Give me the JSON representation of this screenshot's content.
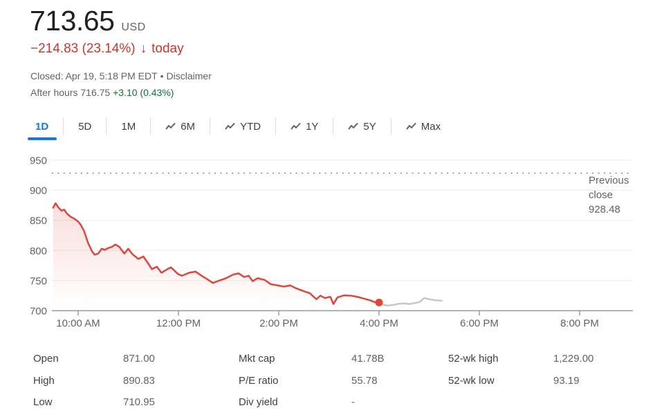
{
  "header": {
    "price": "713.65",
    "currency": "USD",
    "change": "−214.83 (23.14%)",
    "change_arrow": "↓",
    "change_suffix": "today",
    "closed_text": "Closed: Apr 19, 5:18 PM EDT",
    "separator": "•",
    "disclaimer": "Disclaimer",
    "after_hours_label": "After hours",
    "after_hours_price": "716.75",
    "after_hours_change": "+3.10 (0.43%)"
  },
  "tabs": [
    {
      "label": "1D",
      "active": true,
      "has_icon": false
    },
    {
      "label": "5D",
      "active": false,
      "has_icon": false
    },
    {
      "label": "1M",
      "active": false,
      "has_icon": false
    },
    {
      "label": "6M",
      "active": false,
      "has_icon": true
    },
    {
      "label": "YTD",
      "active": false,
      "has_icon": true
    },
    {
      "label": "1Y",
      "active": false,
      "has_icon": true
    },
    {
      "label": "5Y",
      "active": false,
      "has_icon": true
    },
    {
      "label": "Max",
      "active": false,
      "has_icon": true
    }
  ],
  "chart_data": {
    "type": "line",
    "title": "1-day intraday price",
    "xlabel": "",
    "ylabel": "",
    "grid": true,
    "y_axis": {
      "ticks": [
        700,
        750,
        800,
        850,
        900,
        950
      ],
      "range": [
        700,
        950
      ]
    },
    "x_axis": {
      "tick_hours": [
        10,
        12,
        14,
        16,
        18,
        20
      ],
      "tick_labels": [
        "10:00 AM",
        "12:00 PM",
        "2:00 PM",
        "4:00 PM",
        "6:00 PM",
        "8:00 PM"
      ],
      "range_hours": [
        9.47,
        21.06
      ]
    },
    "previous_close": {
      "value": 928.48,
      "label_lines": [
        "Previous",
        "close",
        "928.48"
      ]
    },
    "series": [
      {
        "name": "market-hours",
        "color": "#e0453a",
        "fill": true,
        "end_dot": true,
        "points": [
          [
            9.5,
            871
          ],
          [
            9.55,
            878.5
          ],
          [
            9.6,
            872
          ],
          [
            9.67,
            866
          ],
          [
            9.72,
            868
          ],
          [
            9.78,
            861
          ],
          [
            9.85,
            856
          ],
          [
            9.92,
            853
          ],
          [
            10.0,
            848
          ],
          [
            10.05,
            843
          ],
          [
            10.12,
            832
          ],
          [
            10.2,
            812
          ],
          [
            10.28,
            798
          ],
          [
            10.33,
            793
          ],
          [
            10.4,
            795
          ],
          [
            10.47,
            803
          ],
          [
            10.53,
            801
          ],
          [
            10.6,
            804
          ],
          [
            10.67,
            806
          ],
          [
            10.74,
            810
          ],
          [
            10.82,
            806
          ],
          [
            10.92,
            795
          ],
          [
            11.0,
            803
          ],
          [
            11.08,
            794
          ],
          [
            11.2,
            786
          ],
          [
            11.3,
            790
          ],
          [
            11.4,
            778
          ],
          [
            11.47,
            769
          ],
          [
            11.57,
            773
          ],
          [
            11.66,
            763
          ],
          [
            11.78,
            769
          ],
          [
            11.85,
            772
          ],
          [
            11.99,
            761
          ],
          [
            12.07,
            758
          ],
          [
            12.21,
            763
          ],
          [
            12.34,
            765
          ],
          [
            12.48,
            757
          ],
          [
            12.58,
            752
          ],
          [
            12.69,
            746
          ],
          [
            12.81,
            750
          ],
          [
            12.95,
            754
          ],
          [
            13.09,
            760
          ],
          [
            13.2,
            762
          ],
          [
            13.31,
            756
          ],
          [
            13.4,
            758
          ],
          [
            13.48,
            749
          ],
          [
            13.58,
            754
          ],
          [
            13.72,
            751
          ],
          [
            13.84,
            744
          ],
          [
            13.98,
            742
          ],
          [
            14.1,
            740
          ],
          [
            14.23,
            742
          ],
          [
            14.35,
            737
          ],
          [
            14.51,
            732
          ],
          [
            14.62,
            729
          ],
          [
            14.75,
            719
          ],
          [
            14.83,
            725
          ],
          [
            14.92,
            721
          ],
          [
            15.03,
            723
          ],
          [
            15.09,
            711
          ],
          [
            15.17,
            722
          ],
          [
            15.3,
            725.5
          ],
          [
            15.43,
            725
          ],
          [
            15.57,
            723
          ],
          [
            15.7,
            720
          ],
          [
            15.83,
            717
          ],
          [
            15.92,
            714
          ],
          [
            16.0,
            713.65
          ]
        ]
      },
      {
        "name": "after-hours",
        "color": "#c4c7ca",
        "fill": false,
        "end_dot": false,
        "points": [
          [
            16.0,
            713.65
          ],
          [
            16.08,
            710
          ],
          [
            16.17,
            708.5
          ],
          [
            16.28,
            709.5
          ],
          [
            16.4,
            711.5
          ],
          [
            16.5,
            712
          ],
          [
            16.6,
            711
          ],
          [
            16.7,
            712.5
          ],
          [
            16.8,
            714
          ],
          [
            16.9,
            721
          ],
          [
            17.0,
            719
          ],
          [
            17.1,
            717.5
          ],
          [
            17.25,
            716.5
          ]
        ]
      }
    ]
  },
  "stats": {
    "columns": [
      [
        {
          "label": "Open",
          "value": "871.00"
        },
        {
          "label": "High",
          "value": "890.83"
        },
        {
          "label": "Low",
          "value": "710.95"
        }
      ],
      [
        {
          "label": "Mkt cap",
          "value": "41.78B"
        },
        {
          "label": "P/E ratio",
          "value": "55.78"
        },
        {
          "label": "Div yield",
          "value": "-"
        }
      ],
      [
        {
          "label": "52-wk high",
          "value": "1,229.00"
        },
        {
          "label": "52-wk low",
          "value": "93.19"
        }
      ]
    ]
  },
  "colors": {
    "accent_blue": "#1a73e8",
    "down_red": "#d93025",
    "line_red": "#e0453a",
    "after_hours_gray": "#c4c7ca",
    "up_green": "#137333",
    "text_secondary": "#5f6368",
    "gridline": "#ececee",
    "axis": "#80868b"
  }
}
